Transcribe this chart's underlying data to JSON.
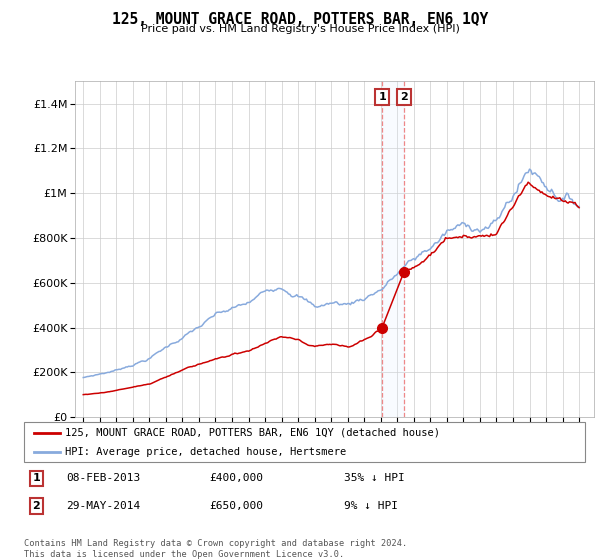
{
  "title": "125, MOUNT GRACE ROAD, POTTERS BAR, EN6 1QY",
  "subtitle": "Price paid vs. HM Land Registry's House Price Index (HPI)",
  "legend_label_red": "125, MOUNT GRACE ROAD, POTTERS BAR, EN6 1QY (detached house)",
  "legend_label_blue": "HPI: Average price, detached house, Hertsmere",
  "transaction1_date": "08-FEB-2013",
  "transaction1_price": 400000,
  "transaction1_note": "35% ↓ HPI",
  "transaction1_x": 2013.08,
  "transaction2_date": "29-MAY-2014",
  "transaction2_price": 650000,
  "transaction2_note": "9% ↓ HPI",
  "transaction2_x": 2014.41,
  "footer": "Contains HM Land Registry data © Crown copyright and database right 2024.\nThis data is licensed under the Open Government Licence v3.0.",
  "ylim": [
    0,
    1500000
  ],
  "xlim": [
    1994.5,
    2025.8
  ],
  "red_color": "#cc0000",
  "blue_color": "#88aadd",
  "vline_color": "#ee8888",
  "shade_color": "#ddeeff"
}
